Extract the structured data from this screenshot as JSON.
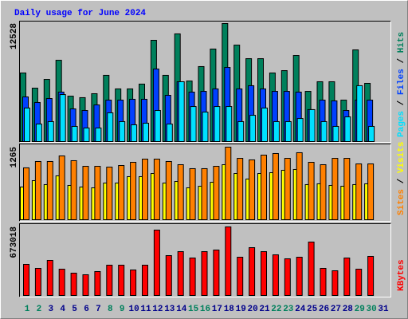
{
  "chart_data": [
    {
      "type": "bar",
      "title": "Daily usage for June 2024",
      "separator": "/",
      "ylim": [
        0,
        12528
      ],
      "yticks": [
        12528
      ],
      "series": [
        {
          "name": "Pages",
          "color": "#00e0ff",
          "values": [
            3560,
            1860,
            2120,
            4990,
            1610,
            1440,
            1440,
            3050,
            2120,
            1780,
            1950,
            3300,
            1860,
            6350,
            3720,
            3130,
            3720,
            3720,
            2120,
            2790,
            3560,
            2120,
            2120,
            2450,
            3390,
            2120,
            1610,
            2620,
            5930,
            1610,
            null
          ]
        },
        {
          "name": "Files",
          "color": "#0040ff",
          "values": [
            4740,
            4150,
            4570,
            5250,
            3470,
            3300,
            3890,
            4400,
            4400,
            4490,
            4490,
            7700,
            4910,
            6350,
            5250,
            5330,
            5590,
            7870,
            5590,
            5930,
            5590,
            5330,
            5330,
            5250,
            3390,
            4400,
            4320,
            3300,
            4400,
            4400,
            null
          ]
        },
        {
          "name": "Hits",
          "color": "#00805c",
          "values": [
            7280,
            5670,
            6600,
            8630,
            4820,
            4660,
            5080,
            7030,
            5590,
            5590,
            6100,
            10750,
            7030,
            11430,
            6430,
            7960,
            9820,
            12528,
            10240,
            8800,
            8800,
            7280,
            7530,
            9140,
            5330,
            6350,
            6350,
            4400,
            9730,
            6180,
            null
          ]
        }
      ]
    },
    {
      "type": "bar",
      "separator": "/",
      "ylim": [
        0,
        1265
      ],
      "yticks": [
        1265
      ],
      "series": [
        {
          "name": "Sites",
          "color": "#ff8000",
          "values": [
            904,
            1015,
            1015,
            1112,
            1029,
            931,
            931,
            917,
            945,
            1001,
            1056,
            1056,
            1015,
            959,
            890,
            890,
            931,
            1265,
            1070,
            1043,
            1126,
            1154,
            1070,
            1168,
            1001,
            959,
            1070,
            1070,
            973,
            973,
            null
          ]
        },
        {
          "name": "Visits",
          "color": "#ffff00",
          "values": [
            570,
            681,
            612,
            765,
            598,
            570,
            556,
            639,
            639,
            751,
            751,
            806,
            639,
            667,
            556,
            584,
            653,
            959,
            806,
            709,
            806,
            820,
            862,
            876,
            612,
            626,
            598,
            584,
            612,
            626,
            null
          ]
        }
      ]
    },
    {
      "type": "bar",
      "ylim": [
        0,
        673018
      ],
      "yticks": [
        673018
      ],
      "series": [
        {
          "name": "KBytes",
          "color": "#ff0000",
          "values": [
            305200,
            266100,
            344300,
            258200,
            219100,
            203500,
            234800,
            297400,
            297400,
            250400,
            297400,
            641700,
            391300,
            430400,
            367800,
            430400,
            446100,
            673018,
            375600,
            469500,
            430400,
            399100,
            360000,
            375600,
            524300,
            266100,
            242600,
            367800,
            258200,
            383500,
            null
          ]
        }
      ],
      "categories": [
        "1",
        "2",
        "3",
        "4",
        "5",
        "6",
        "7",
        "8",
        "9",
        "10",
        "11",
        "12",
        "13",
        "14",
        "15",
        "16",
        "17",
        "18",
        "19",
        "20",
        "21",
        "22",
        "23",
        "24",
        "25",
        "26",
        "27",
        "28",
        "29",
        "30",
        "31"
      ],
      "category_colors": [
        "#00805c",
        "#00805c",
        "#00008b",
        "#00008b",
        "#00008b",
        "#00008b",
        "#00008b",
        "#00805c",
        "#00805c",
        "#00008b",
        "#00008b",
        "#00008b",
        "#00008b",
        "#00008b",
        "#00805c",
        "#00805c",
        "#00008b",
        "#00008b",
        "#00008b",
        "#00008b",
        "#00008b",
        "#00805c",
        "#00805c",
        "#00008b",
        "#00008b",
        "#00008b",
        "#00008b",
        "#00008b",
        "#00805c",
        "#00805c",
        "#00008b"
      ]
    }
  ]
}
